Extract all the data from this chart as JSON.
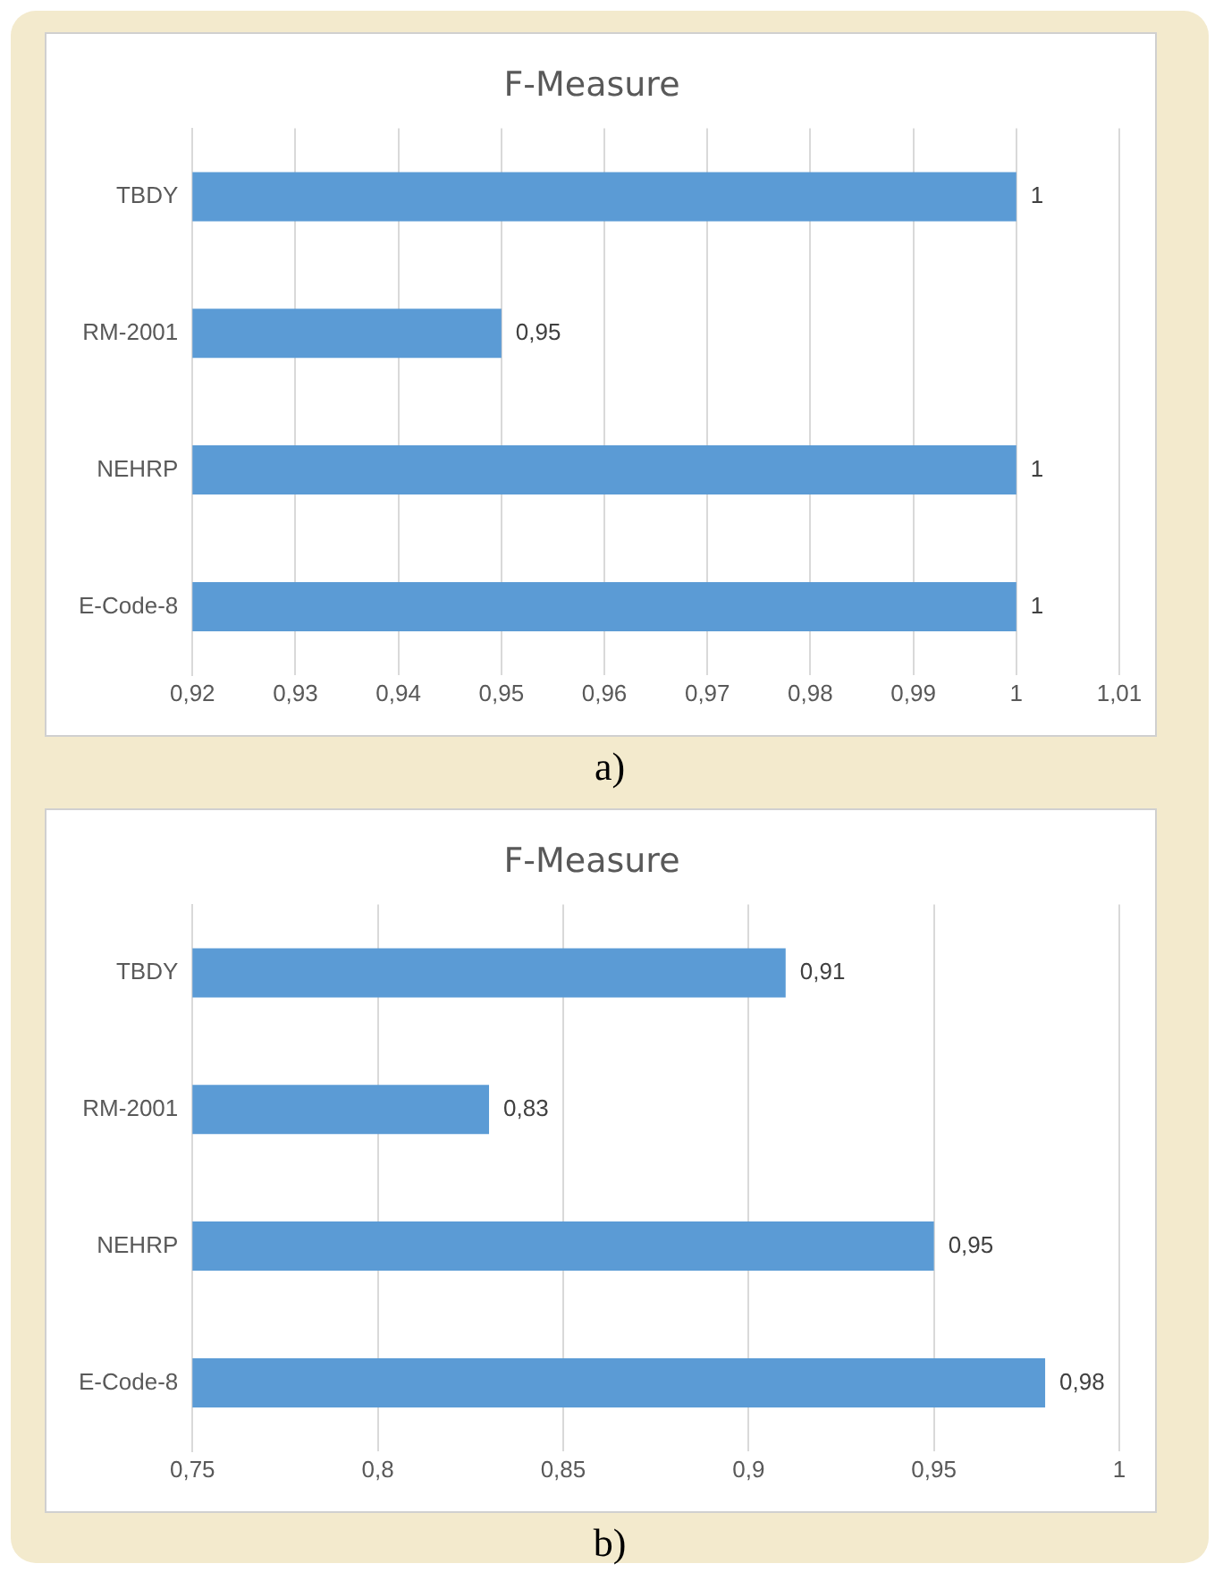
{
  "chart_data": [
    {
      "type": "bar",
      "title": "F-Measure",
      "orientation": "horizontal",
      "categories": [
        "TBDY",
        "RM-2001",
        "NEHRP",
        "E-Code-8"
      ],
      "values": [
        1,
        0.95,
        1,
        1
      ],
      "value_labels": [
        "1",
        "0,95",
        "1",
        "1"
      ],
      "color": "#5b9bd5",
      "xlim": [
        0.92,
        1.01
      ],
      "xticks": [
        {
          "value": 0.92,
          "label": "0,92"
        },
        {
          "value": 0.93,
          "label": "0,93"
        },
        {
          "value": 0.94,
          "label": "0,94"
        },
        {
          "value": 0.95,
          "label": "0,95"
        },
        {
          "value": 0.96,
          "label": "0,96"
        },
        {
          "value": 0.97,
          "label": "0,97"
        },
        {
          "value": 0.98,
          "label": "0,98"
        },
        {
          "value": 0.99,
          "label": "0,99"
        },
        {
          "value": 1,
          "label": "1"
        },
        {
          "value": 1.01,
          "label": "1,01"
        }
      ],
      "grid": "x",
      "annotations": [
        "a)"
      ]
    },
    {
      "type": "bar",
      "title": "F-Measure",
      "orientation": "horizontal",
      "categories": [
        "TBDY",
        "RM-2001",
        "NEHRP",
        "E-Code-8"
      ],
      "values": [
        0.91,
        0.83,
        0.95,
        0.98
      ],
      "value_labels": [
        "0,91",
        "0,83",
        "0,95",
        "0,98"
      ],
      "color": "#5b9bd5",
      "xlim": [
        0.75,
        1
      ],
      "xticks": [
        {
          "value": 0.75,
          "label": "0,75"
        },
        {
          "value": 0.8,
          "label": "0,8"
        },
        {
          "value": 0.85,
          "label": "0,85"
        },
        {
          "value": 0.9,
          "label": "0,9"
        },
        {
          "value": 0.95,
          "label": "0,95"
        },
        {
          "value": 1,
          "label": "1"
        }
      ],
      "grid": "x",
      "annotations": [
        "b)"
      ]
    }
  ]
}
